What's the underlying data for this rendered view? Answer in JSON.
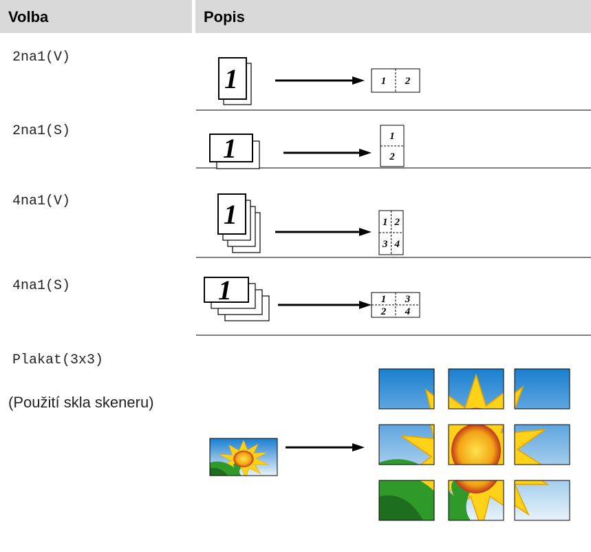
{
  "header": {
    "col1": "Volba",
    "col2": "Popis"
  },
  "rows": [
    {
      "option": "2na1(V)",
      "diagram": {
        "source": "1",
        "cells": [
          "1",
          "2"
        ]
      }
    },
    {
      "option": "2na1(S)",
      "diagram": {
        "source": "1",
        "cells": [
          "1",
          "2"
        ]
      }
    },
    {
      "option": "4na1(V)",
      "diagram": {
        "source": "1",
        "cells": [
          "1",
          "2",
          "3",
          "4"
        ]
      }
    },
    {
      "option": "4na1(S)",
      "diagram": {
        "source": "1",
        "cells": [
          "1",
          "2",
          "3",
          "4"
        ]
      }
    }
  ],
  "poster": {
    "option": "Plakat(3x3)",
    "note": "(Použití skla skeneru)"
  }
}
